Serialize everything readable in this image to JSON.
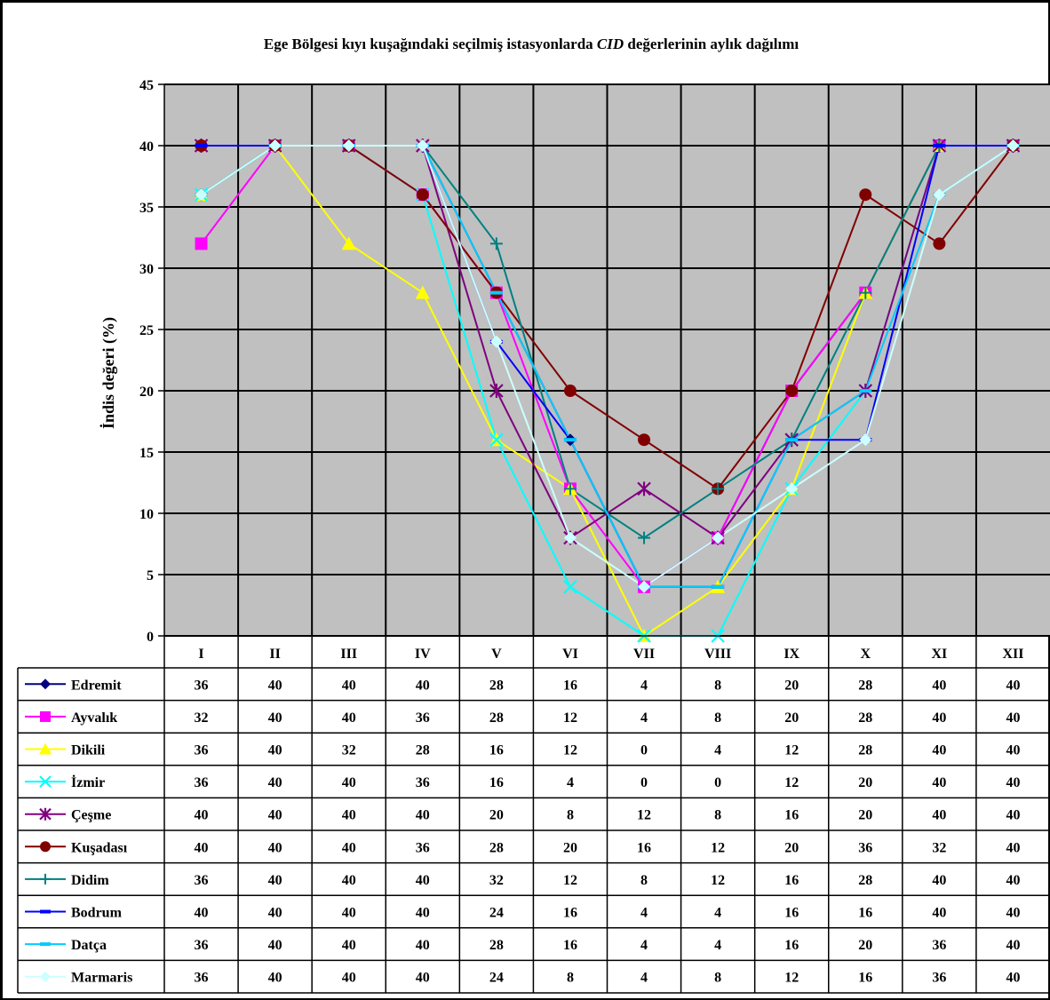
{
  "chart_data": {
    "type": "line",
    "title_part1": "Ege Bölgesi kıyı kuşağındaki seçilmiş istasyonlarda ",
    "title_italic": "CID",
    "title_part2": "  değerlerinin aylık dağılımı",
    "ylabel": "İndis değeri (%)",
    "xlabel": "",
    "ylim": [
      0,
      45
    ],
    "yticks": [
      0,
      5,
      10,
      15,
      20,
      25,
      30,
      35,
      40,
      45
    ],
    "grid": true,
    "legend": "data-table-below",
    "categories": [
      "I",
      "II",
      "III",
      "IV",
      "V",
      "VI",
      "VII",
      "VIII",
      "IX",
      "X",
      "XI",
      "XII"
    ],
    "series": [
      {
        "name": "Edremit",
        "color": "#000080",
        "marker": "diamond",
        "values": [
          36,
          40,
          40,
          40,
          28,
          16,
          4,
          8,
          20,
          28,
          40,
          40
        ]
      },
      {
        "name": "Ayvalık",
        "color": "#ff00ff",
        "marker": "square",
        "values": [
          32,
          40,
          40,
          36,
          28,
          12,
          4,
          8,
          20,
          28,
          40,
          40
        ]
      },
      {
        "name": "Dikili",
        "color": "#ffff00",
        "marker": "triangle",
        "values": [
          36,
          40,
          32,
          28,
          16,
          12,
          0,
          4,
          12,
          28,
          40,
          40
        ]
      },
      {
        "name": "İzmir",
        "color": "#00ffff",
        "marker": "x",
        "values": [
          36,
          40,
          40,
          36,
          16,
          4,
          0,
          0,
          12,
          20,
          40,
          40
        ]
      },
      {
        "name": "Çeşme",
        "color": "#800080",
        "marker": "star",
        "values": [
          40,
          40,
          40,
          40,
          20,
          8,
          12,
          8,
          16,
          20,
          40,
          40
        ]
      },
      {
        "name": "Kuşadası",
        "color": "#800000",
        "marker": "circle",
        "values": [
          40,
          40,
          40,
          36,
          28,
          20,
          16,
          12,
          20,
          36,
          32,
          40
        ]
      },
      {
        "name": "Didim",
        "color": "#008080",
        "marker": "plus",
        "values": [
          36,
          40,
          40,
          40,
          32,
          12,
          8,
          12,
          16,
          28,
          40,
          40
        ]
      },
      {
        "name": "Bodrum",
        "color": "#0000ff",
        "marker": "dash",
        "values": [
          40,
          40,
          40,
          40,
          24,
          16,
          4,
          4,
          16,
          16,
          40,
          40
        ]
      },
      {
        "name": "Datça",
        "color": "#00ccff",
        "marker": "dash",
        "values": [
          36,
          40,
          40,
          40,
          28,
          16,
          4,
          4,
          16,
          20,
          36,
          40
        ]
      },
      {
        "name": "Marmaris",
        "color": "#ccffff",
        "marker": "diamond",
        "values": [
          36,
          40,
          40,
          40,
          24,
          8,
          4,
          8,
          12,
          16,
          36,
          40
        ]
      }
    ]
  }
}
